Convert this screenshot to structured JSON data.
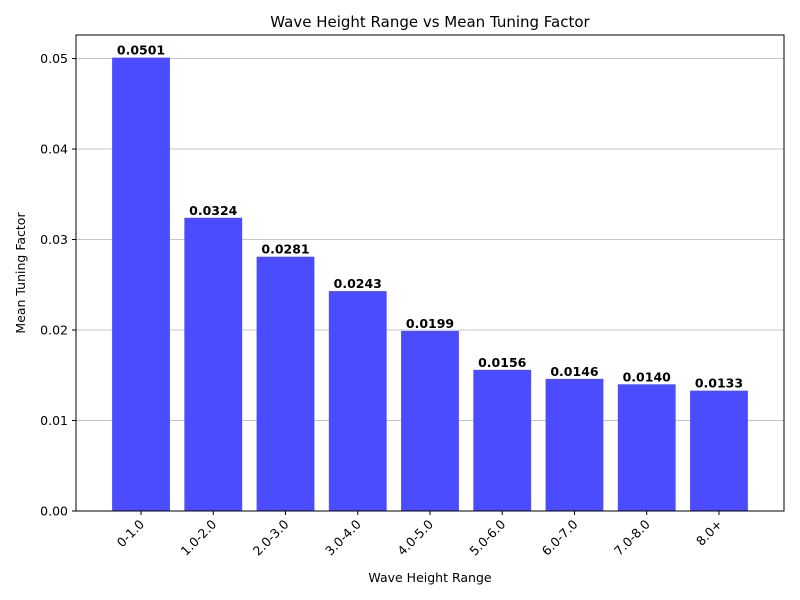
{
  "chart_data": {
    "type": "bar",
    "title": "Wave Height Range vs Mean Tuning Factor",
    "xlabel": "Wave Height Range",
    "ylabel": "Mean Tuning Factor",
    "categories": [
      "0-1.0",
      "1.0-2.0",
      "2.0-3.0",
      "3.0-4.0",
      "4.0-5.0",
      "5.0-6.0",
      "6.0-7.0",
      "7.0-8.0",
      "8.0+"
    ],
    "values": [
      0.0501,
      0.0324,
      0.0281,
      0.0243,
      0.0199,
      0.0156,
      0.0146,
      0.014,
      0.0133
    ],
    "data_labels": [
      "0.0501",
      "0.0324",
      "0.0281",
      "0.0243",
      "0.0199",
      "0.0156",
      "0.0146",
      "0.0140",
      "0.0133"
    ],
    "ylim": [
      0,
      0.0526
    ],
    "yticks": [
      0.0,
      0.01,
      0.02,
      0.03,
      0.04,
      0.05
    ],
    "ytick_labels": [
      "0.00",
      "0.01",
      "0.02",
      "0.03",
      "0.04",
      "0.05"
    ],
    "grid": "y-axis horizontal lines",
    "bar_color": "#4b4bff"
  }
}
